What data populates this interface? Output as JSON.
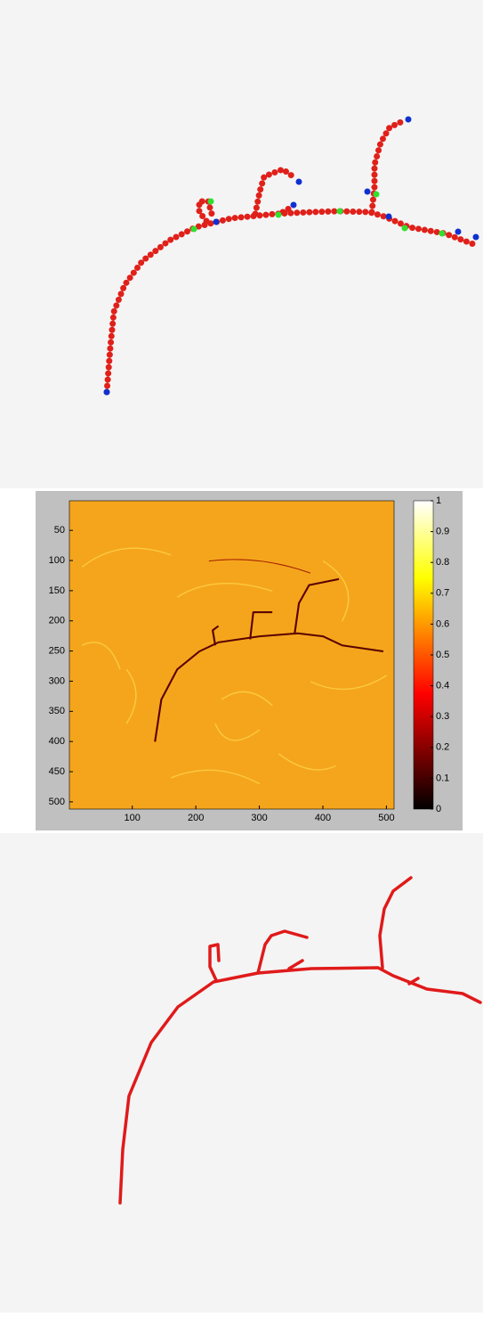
{
  "chart_data": {
    "type": "heatmap",
    "xlim": [
      1,
      512
    ],
    "xticks": [
      100,
      200,
      300,
      400,
      500
    ],
    "ylim": [
      1,
      512
    ],
    "yticks": [
      50,
      100,
      150,
      200,
      250,
      300,
      350,
      400,
      450,
      500
    ],
    "clim": [
      0,
      1
    ],
    "cticks": [
      0,
      0.1,
      0.2,
      0.3,
      0.4,
      0.5,
      0.6,
      0.7,
      0.8,
      0.9,
      1
    ]
  }
}
